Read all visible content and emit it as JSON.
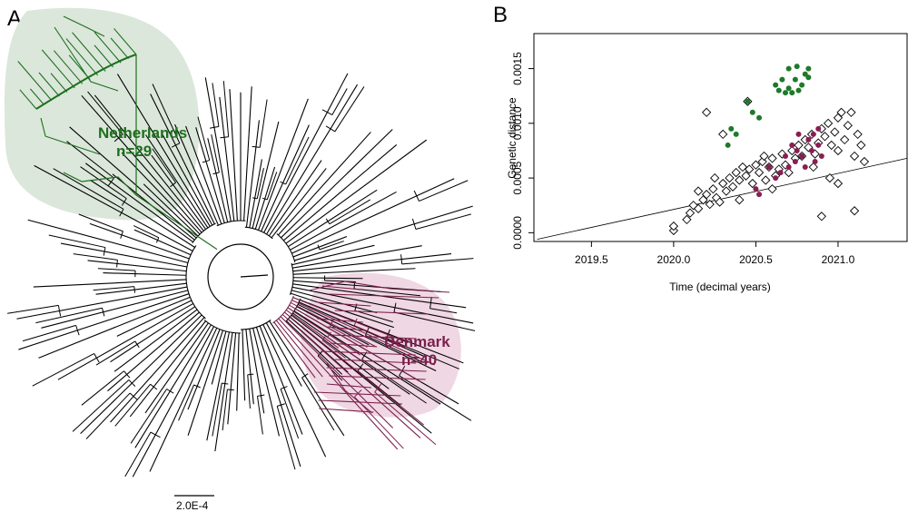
{
  "panels": {
    "a_letter": "A",
    "b_letter": "B"
  },
  "tree": {
    "scale_bar_label": "2.0E-4",
    "clades": [
      {
        "name": "Netherlands",
        "count": "n=29",
        "color": "#1e6f1e",
        "bubble": "#dbe7da"
      },
      {
        "name": "Denmark",
        "count": "n=40",
        "color": "#7a1f4c",
        "bubble": "#f0d7e4"
      }
    ],
    "branch_color": "#000000"
  },
  "chart_data": {
    "type": "scatter",
    "title": "",
    "xlabel": "Time (decimal years)",
    "ylabel": "Genetic distance",
    "xlim": [
      2019.15,
      2021.42
    ],
    "ylim": [
      -8e-05,
      0.00182
    ],
    "x_ticks": [
      "2019.5",
      "2020.0",
      "2020.5",
      "2021.0"
    ],
    "x_tick_values": [
      2019.5,
      2020.0,
      2020.5,
      2021.0
    ],
    "y_ticks": [
      "0.0000",
      "0.0005",
      "0.0010",
      "0.0015"
    ],
    "y_tick_values": [
      0.0,
      0.0005,
      0.001,
      0.0015
    ],
    "grid": false,
    "regression_line": {
      "x": [
        2019.17,
        2021.42
      ],
      "y": [
        -6e-05,
        0.00068
      ]
    },
    "series": [
      {
        "marker": "open-diamond",
        "color": "#000000",
        "points": [
          [
            2020.0,
            2e-05
          ],
          [
            2020.0,
            6e-05
          ],
          [
            2020.08,
            0.00012
          ],
          [
            2020.1,
            0.00018
          ],
          [
            2020.12,
            0.00025
          ],
          [
            2020.15,
            0.00022
          ],
          [
            2020.18,
            0.0003
          ],
          [
            2020.2,
            0.00035
          ],
          [
            2020.22,
            0.00026
          ],
          [
            2020.24,
            0.0004
          ],
          [
            2020.26,
            0.00032
          ],
          [
            2020.28,
            0.00028
          ],
          [
            2020.3,
            0.00045
          ],
          [
            2020.32,
            0.00038
          ],
          [
            2020.34,
            0.0005
          ],
          [
            2020.36,
            0.00042
          ],
          [
            2020.38,
            0.00055
          ],
          [
            2020.4,
            0.00048
          ],
          [
            2020.42,
            0.0006
          ],
          [
            2020.44,
            0.00052
          ],
          [
            2020.46,
            0.00058
          ],
          [
            2020.48,
            0.00045
          ],
          [
            2020.5,
            0.00062
          ],
          [
            2020.52,
            0.00055
          ],
          [
            2020.54,
            0.00065
          ],
          [
            2020.56,
            0.00048
          ],
          [
            2020.58,
            0.0006
          ],
          [
            2020.6,
            0.00068
          ],
          [
            2020.62,
            0.00052
          ],
          [
            2020.64,
            0.00058
          ],
          [
            2020.66,
            0.00072
          ],
          [
            2020.68,
            0.00062
          ],
          [
            2020.7,
            0.00055
          ],
          [
            2020.72,
            0.00075
          ],
          [
            2020.74,
            0.00068
          ],
          [
            2020.76,
            0.0008
          ],
          [
            2020.78,
            0.0007
          ],
          [
            2020.8,
            0.00085
          ],
          [
            2020.82,
            0.00078
          ],
          [
            2020.84,
            0.0009
          ],
          [
            2020.86,
            0.00072
          ],
          [
            2020.88,
            0.00082
          ],
          [
            2020.9,
            0.00095
          ],
          [
            2020.92,
            0.00088
          ],
          [
            2020.94,
            0.001
          ],
          [
            2020.96,
            0.0008
          ],
          [
            2020.98,
            0.00092
          ],
          [
            2021.0,
            0.00105
          ],
          [
            2021.0,
            0.00075
          ],
          [
            2021.02,
            0.0011
          ],
          [
            2021.04,
            0.00085
          ],
          [
            2021.06,
            0.00098
          ],
          [
            2021.08,
            0.0011
          ],
          [
            2021.1,
            0.0007
          ],
          [
            2021.12,
            0.0009
          ],
          [
            2021.14,
            0.0008
          ],
          [
            2021.16,
            0.00065
          ],
          [
            2020.2,
            0.0011
          ],
          [
            2020.3,
            0.0009
          ],
          [
            2020.45,
            0.0012
          ],
          [
            2020.9,
            0.00015
          ],
          [
            2021.1,
            0.0002
          ],
          [
            2021.0,
            0.00045
          ],
          [
            2020.95,
            0.0005
          ],
          [
            2020.6,
            0.0004
          ],
          [
            2020.4,
            0.0003
          ],
          [
            2020.15,
            0.00038
          ],
          [
            2020.25,
            0.0005
          ],
          [
            2020.55,
            0.0007
          ],
          [
            2020.85,
            0.0006
          ]
        ]
      },
      {
        "marker": "filled-circle",
        "color": "#1e7a2a",
        "points": [
          [
            2020.33,
            0.0008
          ],
          [
            2020.35,
            0.00095
          ],
          [
            2020.38,
            0.0009
          ],
          [
            2020.45,
            0.0012
          ],
          [
            2020.48,
            0.0011
          ],
          [
            2020.52,
            0.00105
          ],
          [
            2020.62,
            0.00135
          ],
          [
            2020.64,
            0.0013
          ],
          [
            2020.66,
            0.0014
          ],
          [
            2020.68,
            0.00128
          ],
          [
            2020.7,
            0.00132
          ],
          [
            2020.7,
            0.0015
          ],
          [
            2020.72,
            0.00128
          ],
          [
            2020.74,
            0.0014
          ],
          [
            2020.75,
            0.00152
          ],
          [
            2020.76,
            0.0013
          ],
          [
            2020.78,
            0.00135
          ],
          [
            2020.8,
            0.00145
          ],
          [
            2020.82,
            0.0015
          ],
          [
            2020.82,
            0.00142
          ]
        ]
      },
      {
        "marker": "filled-circle",
        "color": "#8a1e52",
        "points": [
          [
            2020.5,
            0.0004
          ],
          [
            2020.52,
            0.00035
          ],
          [
            2020.58,
            0.0006
          ],
          [
            2020.62,
            0.0005
          ],
          [
            2020.65,
            0.00055
          ],
          [
            2020.68,
            0.0007
          ],
          [
            2020.7,
            0.0006
          ],
          [
            2020.72,
            0.0008
          ],
          [
            2020.74,
            0.00065
          ],
          [
            2020.75,
            0.00075
          ],
          [
            2020.76,
            0.0009
          ],
          [
            2020.78,
            0.0007
          ],
          [
            2020.8,
            0.0006
          ],
          [
            2020.82,
            0.00085
          ],
          [
            2020.84,
            0.00075
          ],
          [
            2020.85,
            0.0009
          ],
          [
            2020.86,
            0.00065
          ],
          [
            2020.88,
            0.0008
          ],
          [
            2020.88,
            0.00095
          ],
          [
            2020.9,
            0.0007
          ]
        ]
      }
    ]
  }
}
